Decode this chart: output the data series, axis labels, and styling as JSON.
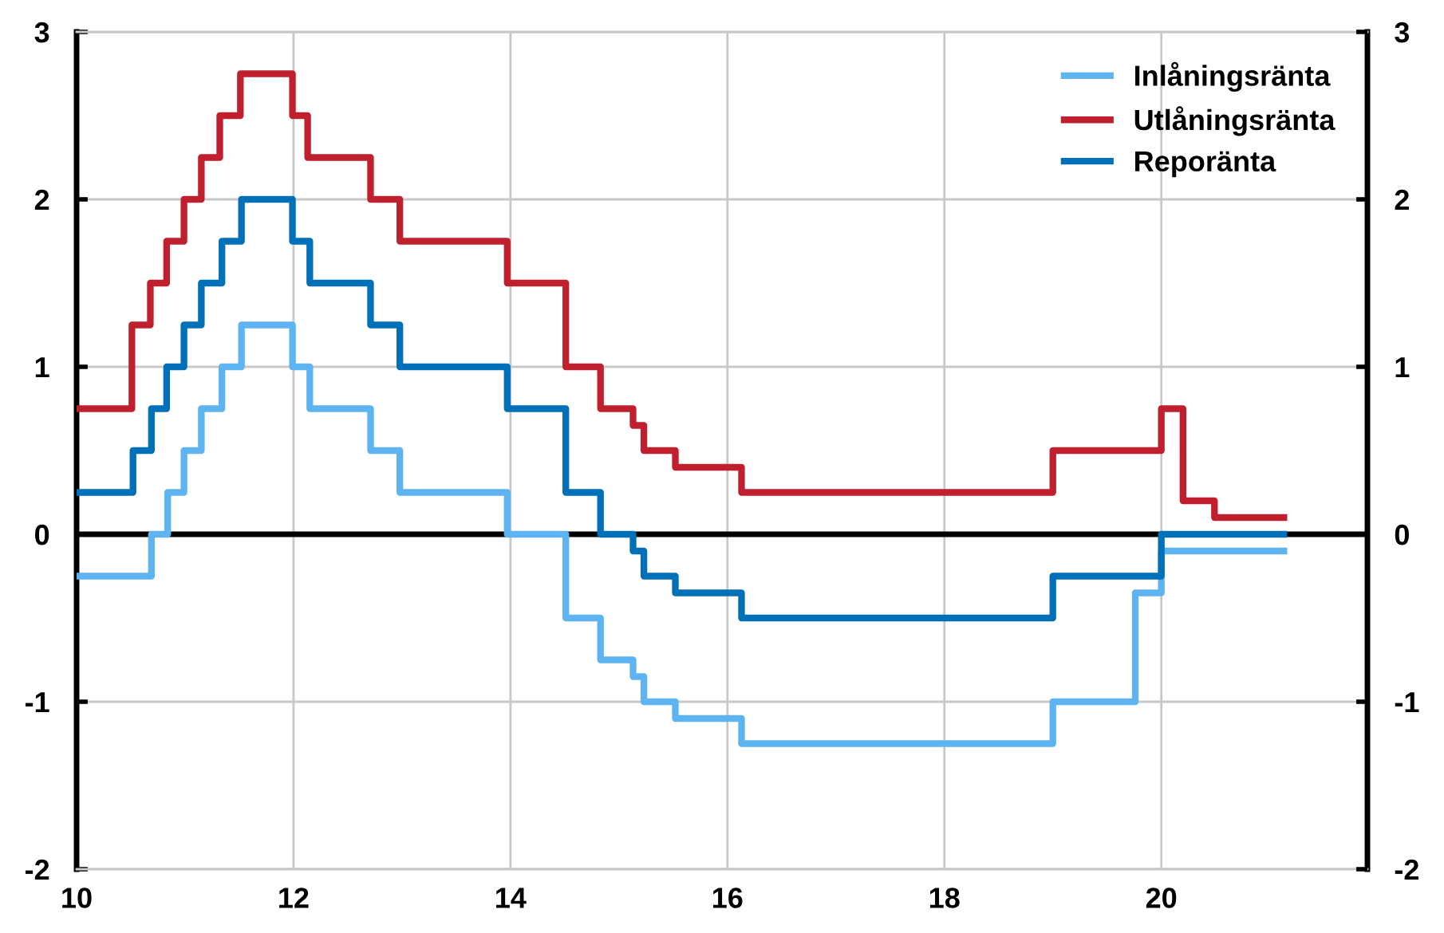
{
  "chart_data": {
    "type": "step",
    "series": [
      {
        "name": "Inlåningsränta",
        "color": "#5db4f0",
        "x": [
          10,
          10.69,
          10.84,
          10.99,
          11.15,
          11.34,
          11.52,
          11.99,
          12.15,
          12.71,
          12.98,
          13.97,
          14.51,
          14.83,
          15.13,
          15.23,
          15.52,
          16.13,
          19.0,
          19.76,
          20.0,
          21.13
        ],
        "values": [
          -0.25,
          0,
          0.25,
          0.5,
          0.75,
          1.0,
          1.25,
          1.0,
          0.75,
          0.5,
          0.25,
          0,
          -0.5,
          -0.75,
          -0.85,
          -1.0,
          -1.1,
          -1.25,
          -1.0,
          -0.35,
          -0.1,
          -0.1
        ]
      },
      {
        "name": "Utlåningsränta",
        "color": "#c0202e",
        "x": [
          10,
          10.51,
          10.68,
          10.83,
          10.99,
          11.15,
          11.32,
          11.51,
          11.99,
          12.13,
          12.71,
          12.98,
          13.97,
          14.51,
          14.83,
          15.13,
          15.23,
          15.52,
          16.13,
          19.0,
          20.0,
          20.2,
          20.49,
          21.13
        ],
        "values": [
          0.75,
          1.25,
          1.5,
          1.75,
          2.0,
          2.25,
          2.5,
          2.75,
          2.5,
          2.25,
          2.0,
          1.75,
          1.5,
          1.0,
          0.75,
          0.65,
          0.5,
          0.4,
          0.25,
          0.5,
          0.75,
          0.2,
          0.1,
          0.1
        ]
      },
      {
        "name": "Reporänta",
        "color": "#0070b8",
        "x": [
          10,
          10.52,
          10.69,
          10.83,
          10.99,
          11.15,
          11.34,
          11.52,
          11.99,
          12.15,
          12.71,
          12.98,
          13.97,
          14.51,
          14.83,
          15.13,
          15.23,
          15.52,
          16.13,
          19.0,
          20.0,
          21.13
        ],
        "values": [
          0.25,
          0.5,
          0.75,
          1.0,
          1.25,
          1.5,
          1.75,
          2.0,
          1.75,
          1.5,
          1.25,
          1.0,
          0.75,
          0.25,
          0,
          -0.1,
          -0.25,
          -0.35,
          -0.5,
          -0.25,
          0,
          0
        ]
      }
    ],
    "xlim": [
      10,
      21.9
    ],
    "xticks": [
      10,
      12,
      14,
      16,
      18,
      20
    ],
    "ylim": [
      -2,
      3
    ],
    "yticks": [
      -2,
      -1,
      0,
      1,
      2,
      3
    ],
    "y2lim": [
      -2,
      3
    ],
    "y2ticks": [
      -2,
      -1,
      0,
      1,
      2,
      3
    ],
    "ref_lines": [
      {
        "axis": "y",
        "value": 0,
        "color": "#000000"
      }
    ],
    "grid": true,
    "legend": "top right"
  }
}
